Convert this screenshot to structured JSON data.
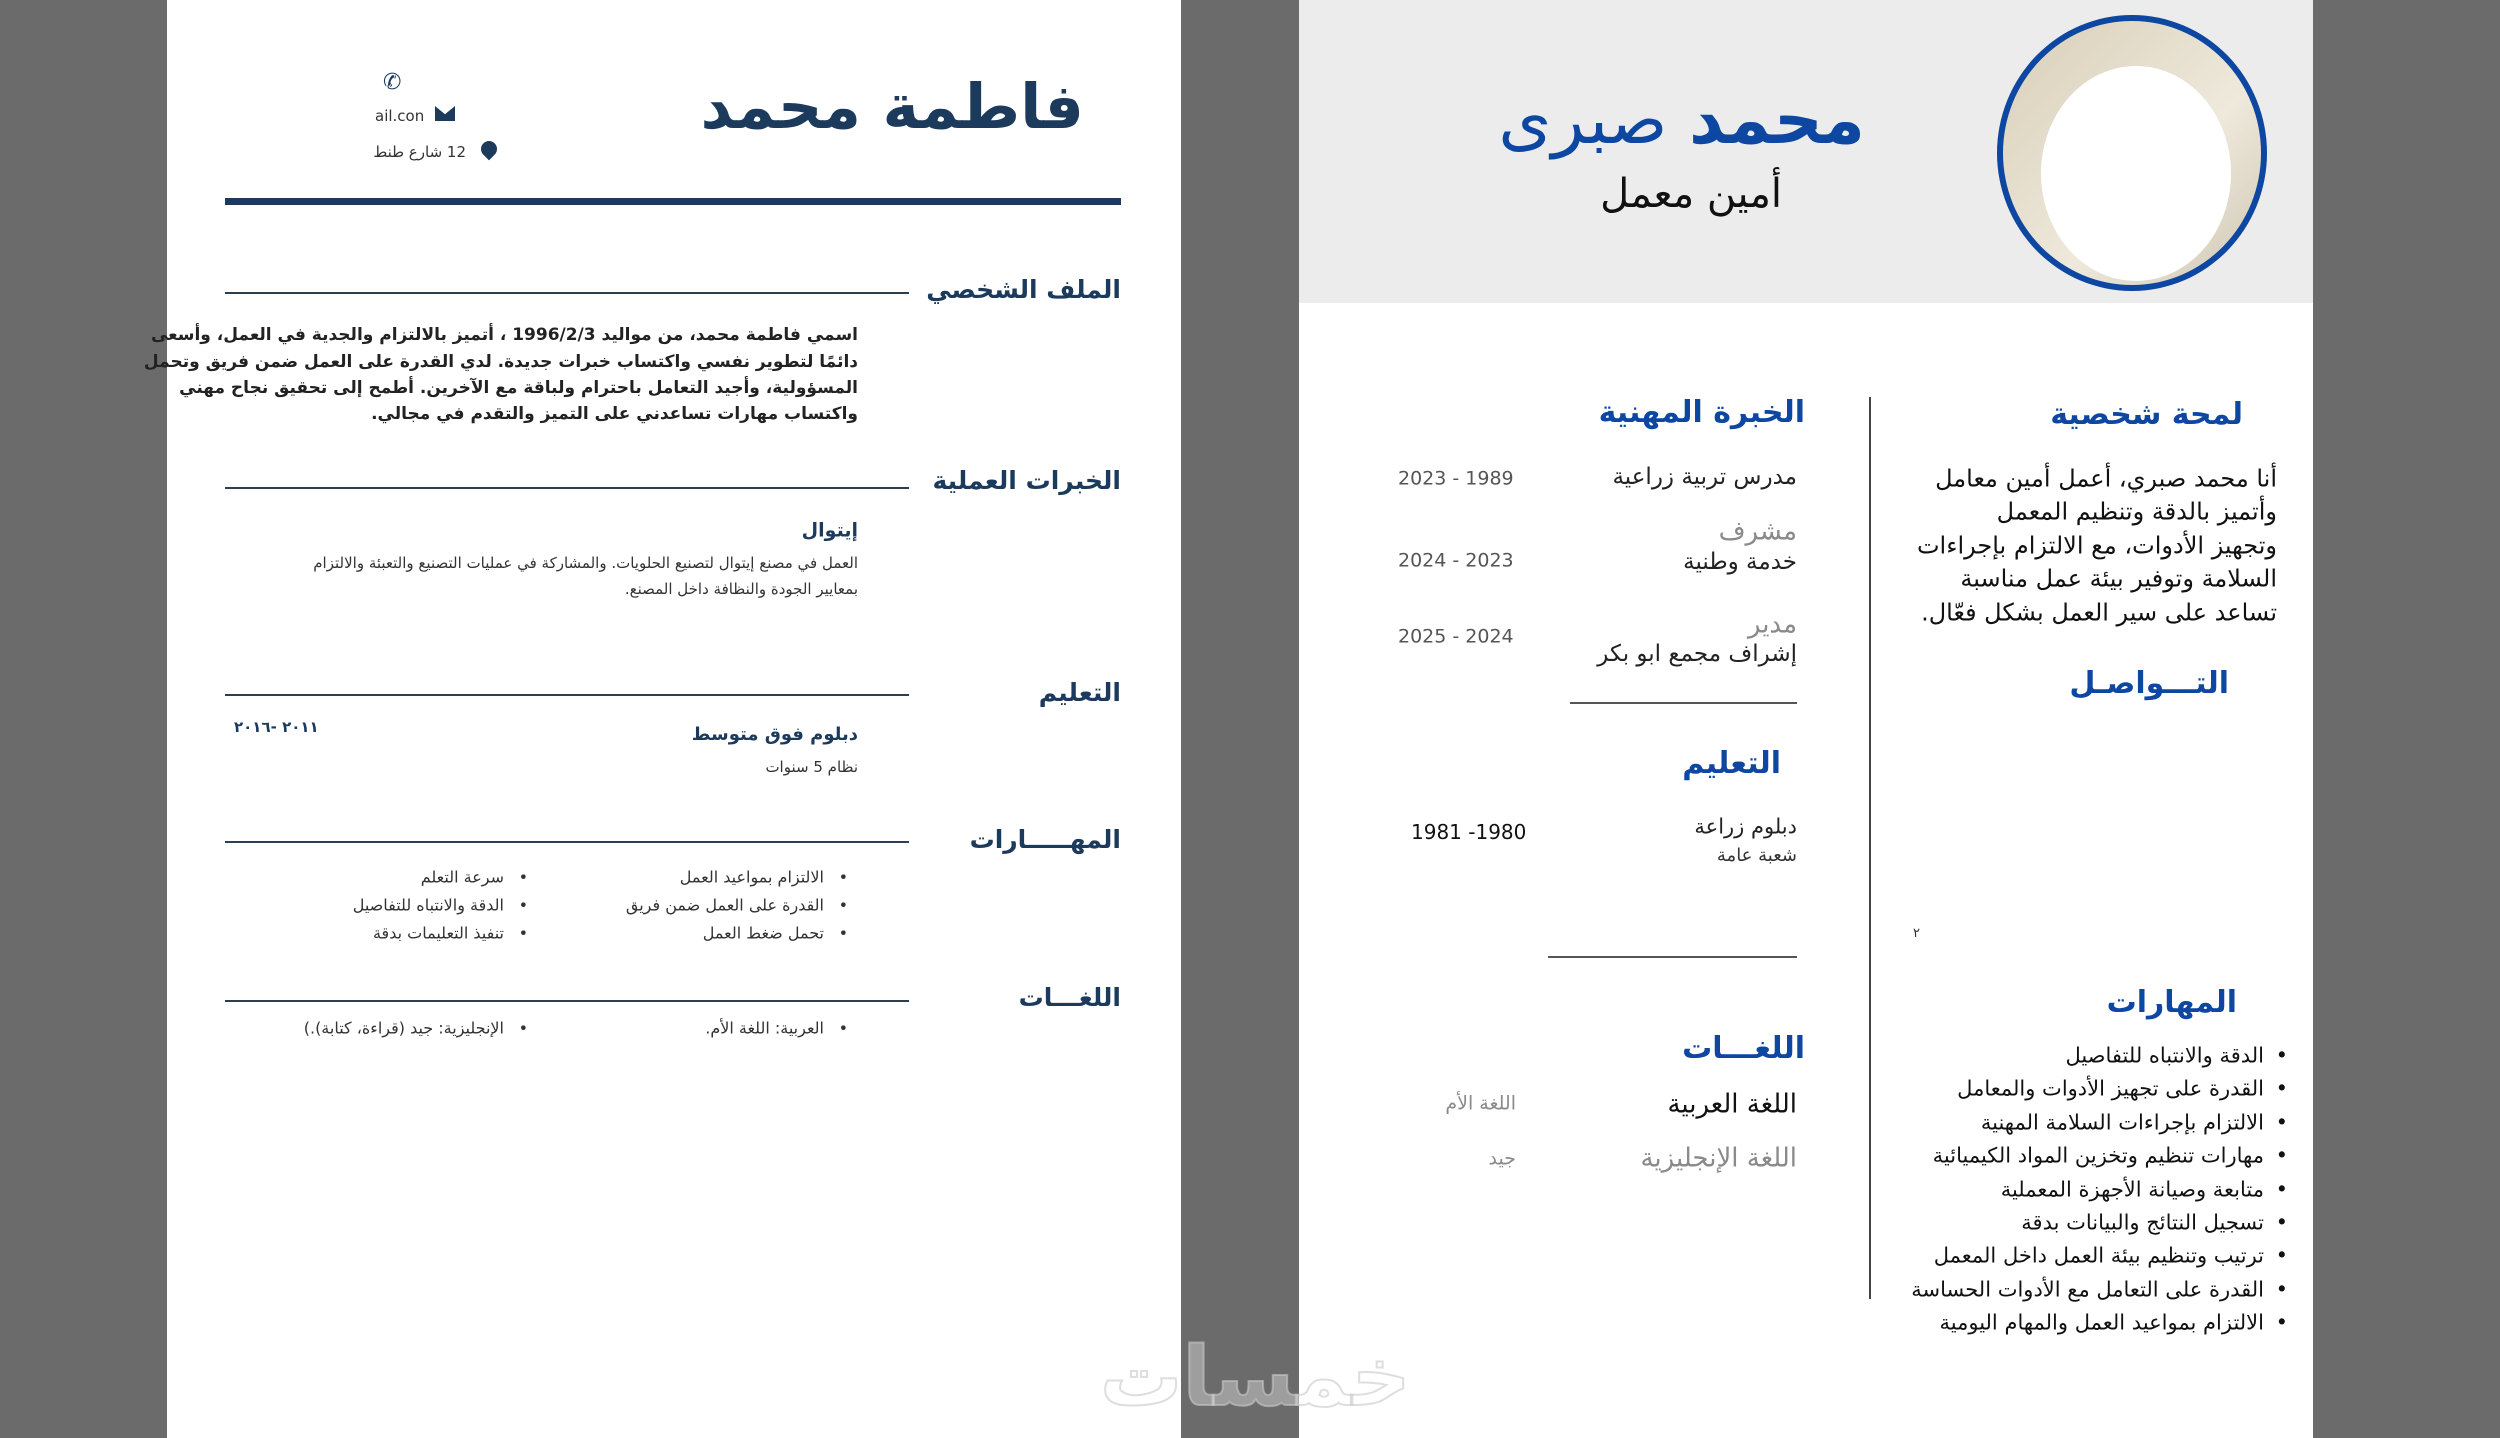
{
  "left_resume": {
    "name": "فاطمة محمد",
    "contact": {
      "phone_icon": "phone-icon",
      "email": "ail.con",
      "email_icon": "envelope-icon",
      "address": "12 شارع طنط",
      "address_icon": "map-pin-icon"
    },
    "profile": {
      "heading": "الملف الشخصي",
      "lines": [
        "اسمي فاطمة محمد، من مواليد 1996/2/3 ، أتميز بالالتزام والجدية في العمل، وأسعى",
        "دائمًا لتطوير نفسي واكتساب خبرات جديدة. لدي القدرة على العمل ضمن فريق وتحمل",
        "المسؤولية، وأجيد التعامل باحترام ولباقة مع الآخرين. أطمح إلى تحقيق نجاح مهني",
        "واكتساب مهارات تساعدني على التميز والتقدم في مجالي."
      ]
    },
    "experience": {
      "heading": "الخبرات العملية",
      "company": "إيتوال",
      "lines": [
        "العمل في مصنع إيتوال لتصنيع الحلويات. والمشاركة في عمليات التصنيع والتعبئة والالتزام",
        "بمعايير الجودة والنظافة داخل المصنع."
      ]
    },
    "education": {
      "heading": "التعليم",
      "degree": "دبلوم فوق متوسط",
      "detail": "نظام 5 سنوات",
      "date": "٢٠١١ -٢٠١٦"
    },
    "skills": {
      "heading": "المهـــــارات",
      "col1": [
        "الالتزام بمواعيد العمل",
        "القدرة على العمل ضمن فريق",
        "تحمل ضغط العمل"
      ],
      "col2": [
        "سرعة التعلم",
        "الدقة والانتباه للتفاصيل",
        "تنفيذ التعليمات بدقة"
      ]
    },
    "languages": {
      "heading": "اللغـــات",
      "items": [
        "العربية: اللغة الأم.",
        "الإنجليزية: جيد (قراءة، كتابة).)"
      ]
    }
  },
  "right_resume": {
    "first_name": "محمد",
    "last_name": "صبرى",
    "title": "أمين معمل",
    "experience": {
      "heading": "الخبرة المهنية",
      "jobs": [
        {
          "role": "",
          "desc": "مدرس تربية زراعية",
          "date": "2023 - 1989"
        },
        {
          "role": "مشرف",
          "desc": "خدمة وطنية",
          "date": "2024 - 2023"
        },
        {
          "role": "مدير",
          "desc": "إشراف مجمع ابو بكر",
          "date": "2025 - 2024"
        }
      ]
    },
    "education": {
      "heading": "التعليم",
      "degree": "دبلوم زراعة",
      "detail": "شعبة عامة",
      "date": "1981 -1980"
    },
    "languages": {
      "heading": "اللغـــات",
      "items": [
        {
          "name": "اللغة العربية",
          "level": "اللغة الأم"
        },
        {
          "name": "اللغة الإنجليزية",
          "level": "جيد"
        }
      ]
    },
    "profile": {
      "heading": "لمحة شخصية",
      "lines": [
        "أنا محمد صبري، أعمل أمين معامل",
        "وأتميز بالدقة وتنظيم المعمل",
        "وتجهيز الأدوات، مع الالتزام بإجراءات",
        "السلامة وتوفير بيئة عمل مناسبة",
        "تساعد على سير العمل بشكل فعّال."
      ]
    },
    "contact": {
      "heading": "التـــواصـل",
      "stray": "٢"
    },
    "skills": {
      "heading": "المهارات",
      "items": [
        "الدقة والانتباه للتفاصيل",
        "القدرة على تجهيز الأدوات والمعامل",
        "الالتزام بإجراءات السلامة المهنية",
        "مهارات تنظيم وتخزين المواد الكيميائية",
        "متابعة وصيانة الأجهزة المعملية",
        "تسجيل النتائج والبيانات بدقة",
        "ترتيب وتنظيم بيئة العمل داخل المعمل",
        "القدرة على التعامل مع الأدوات الحساسة",
        "الالتزام بمواعيد العمل والمهام اليومية"
      ]
    }
  },
  "watermark": "خمسات",
  "colors": {
    "navy": "#1b3a5c",
    "blue": "#0d47a1",
    "header_gray": "#ececec",
    "backdrop": "#6b6b6b"
  }
}
